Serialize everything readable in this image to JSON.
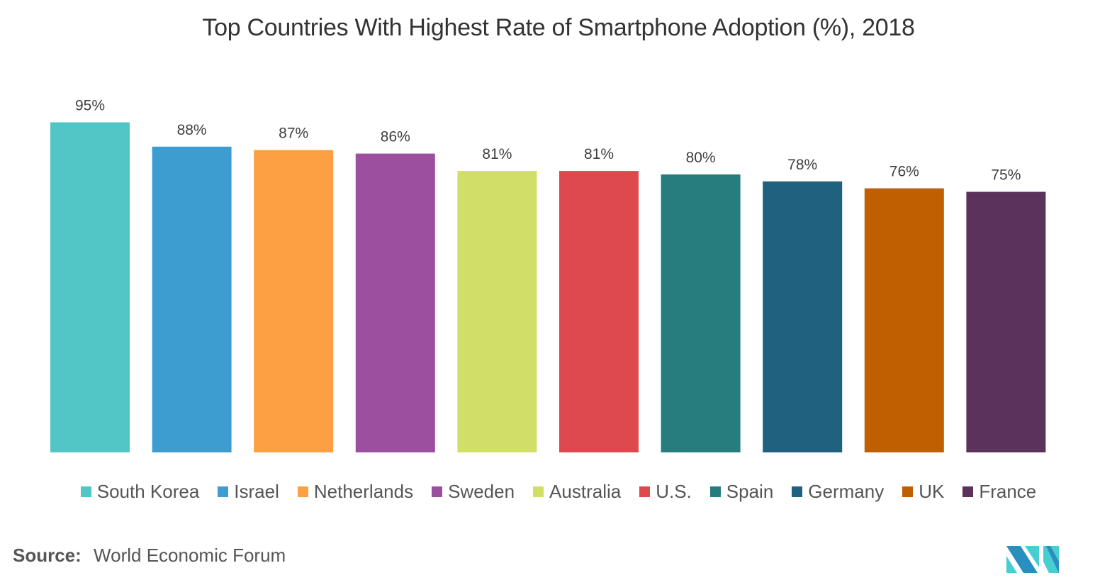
{
  "chart_data": {
    "type": "bar",
    "title": "Top Countries With Highest Rate of Smartphone Adoption (%), 2018",
    "xlabel": "",
    "ylabel": "",
    "ylim": [
      0,
      100
    ],
    "grid": false,
    "legend_position": "bottom",
    "categories": [
      "South Korea",
      "Israel",
      "Netherlands",
      "Sweden",
      "Australia",
      "U.S.",
      "Spain",
      "Germany",
      "UK",
      "France"
    ],
    "values": [
      95,
      88,
      87,
      86,
      81,
      81,
      80,
      78,
      76,
      75
    ],
    "data_labels": [
      "95%",
      "88%",
      "87%",
      "86%",
      "81%",
      "81%",
      "80%",
      "78%",
      "76%",
      "75%"
    ],
    "colors": [
      "#52c5c7",
      "#3d9dd0",
      "#fca043",
      "#9b4f9e",
      "#d1df68",
      "#dd494c",
      "#277d7e",
      "#20617f",
      "#c05f02",
      "#5b325b"
    ]
  },
  "source": {
    "label": "Source:",
    "value": "World Economic Forum"
  },
  "logo": {
    "icon": "mordor-intelligence-logo-icon",
    "colors": [
      "#2a8fc0",
      "#48cdd1"
    ]
  }
}
